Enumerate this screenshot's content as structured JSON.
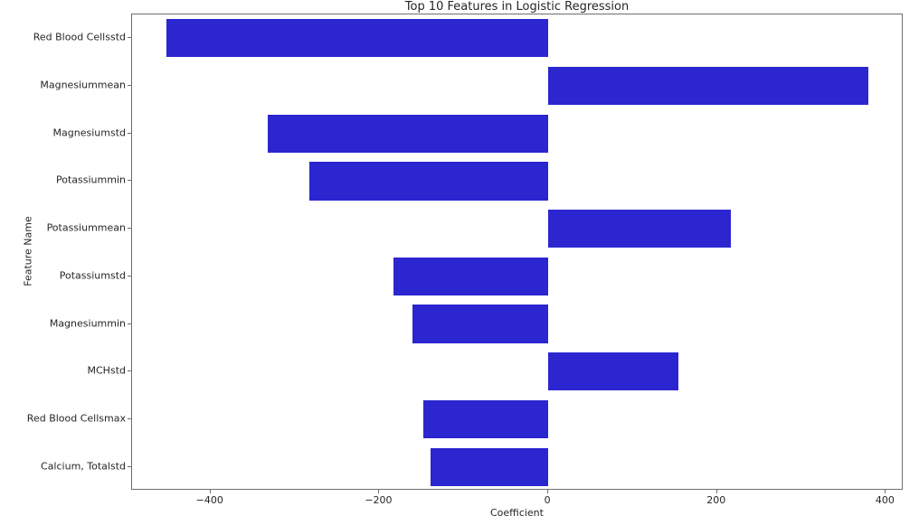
{
  "figure": {
    "background": "#ffffff",
    "text_color": "#262626",
    "spine_color": "#6e6e6e"
  },
  "chart_data": {
    "type": "bar",
    "orientation": "horizontal",
    "title": "Top 10 Features in Logistic Regression",
    "xlabel": "Coefficient",
    "ylabel": "Feature Name",
    "bar_color": "#2b26d0",
    "grid": false,
    "legend": null,
    "xlim": [
      -493,
      421
    ],
    "x_ticks": [
      {
        "value": -400,
        "label": "−400"
      },
      {
        "value": -200,
        "label": "−200"
      },
      {
        "value": 0,
        "label": "0"
      },
      {
        "value": 200,
        "label": "200"
      },
      {
        "value": 400,
        "label": "400"
      }
    ],
    "features": [
      {
        "name": "Red Blood Cellsstd",
        "value": -452
      },
      {
        "name": "Magnesiummean",
        "value": 379
      },
      {
        "name": "Magnesiumstd",
        "value": -332
      },
      {
        "name": "Potassiummin",
        "value": -283
      },
      {
        "name": "Potassiummean",
        "value": 216
      },
      {
        "name": "Potassiumstd",
        "value": -183
      },
      {
        "name": "Magnesiummin",
        "value": -161
      },
      {
        "name": "MCHstd",
        "value": 154
      },
      {
        "name": "Red Blood Cellsmax",
        "value": -148
      },
      {
        "name": "Calcium, Totalstd",
        "value": -139
      }
    ]
  }
}
